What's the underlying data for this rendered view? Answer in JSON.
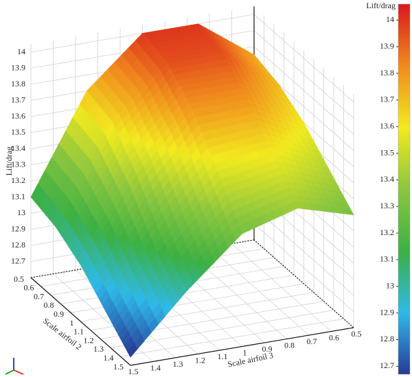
{
  "chart_data": {
    "type": "surface",
    "z_label": "Lift/drag",
    "x_label": "Scale airfoil 2",
    "y_label": "Scale airfoil 3",
    "x": [
      0.5,
      0.75,
      1,
      1.25,
      1.5
    ],
    "y": [
      0.5,
      0.75,
      1,
      1.25,
      1.5
    ],
    "z": [
      [
        13.75,
        14.0,
        14.0,
        13.7,
        13.1
      ],
      [
        13.7,
        13.95,
        13.95,
        13.65,
        13.05
      ],
      [
        13.6,
        13.8,
        13.8,
        13.45,
        12.95
      ],
      [
        13.45,
        13.6,
        13.55,
        13.2,
        12.8
      ],
      [
        13.3,
        13.4,
        13.3,
        13.0,
        12.65
      ]
    ],
    "xlim": [
      0.5,
      1.5
    ],
    "ylim": [
      0.5,
      1.5
    ],
    "zlim": [
      12.6,
      14.05
    ],
    "xticks": [
      0.5,
      0.6,
      0.7,
      0.8,
      0.9,
      1,
      1.1,
      1.2,
      1.3,
      1.4,
      1.5
    ],
    "yticks": [
      0.5,
      0.6,
      0.7,
      0.8,
      0.9,
      1,
      1.1,
      1.2,
      1.3,
      1.4,
      1.5
    ],
    "zticks": [
      12.7,
      12.8,
      12.9,
      13,
      13.1,
      13.2,
      13.3,
      13.4,
      13.5,
      13.6,
      13.7,
      13.8,
      13.9,
      14
    ],
    "grid": true,
    "colorbar": {
      "title": "Lift/drag",
      "lim": [
        12.67,
        14.06
      ],
      "ticks": [
        12.7,
        12.8,
        12.9,
        13,
        13.1,
        13.2,
        13.3,
        13.4,
        13.5,
        13.6,
        13.7,
        13.8,
        13.9,
        14
      ],
      "colors": [
        "#283a96",
        "#2fb9e8",
        "#3cb043",
        "#8cc63f",
        "#f2ea1f",
        "#f08a1e",
        "#d7191c"
      ]
    }
  }
}
